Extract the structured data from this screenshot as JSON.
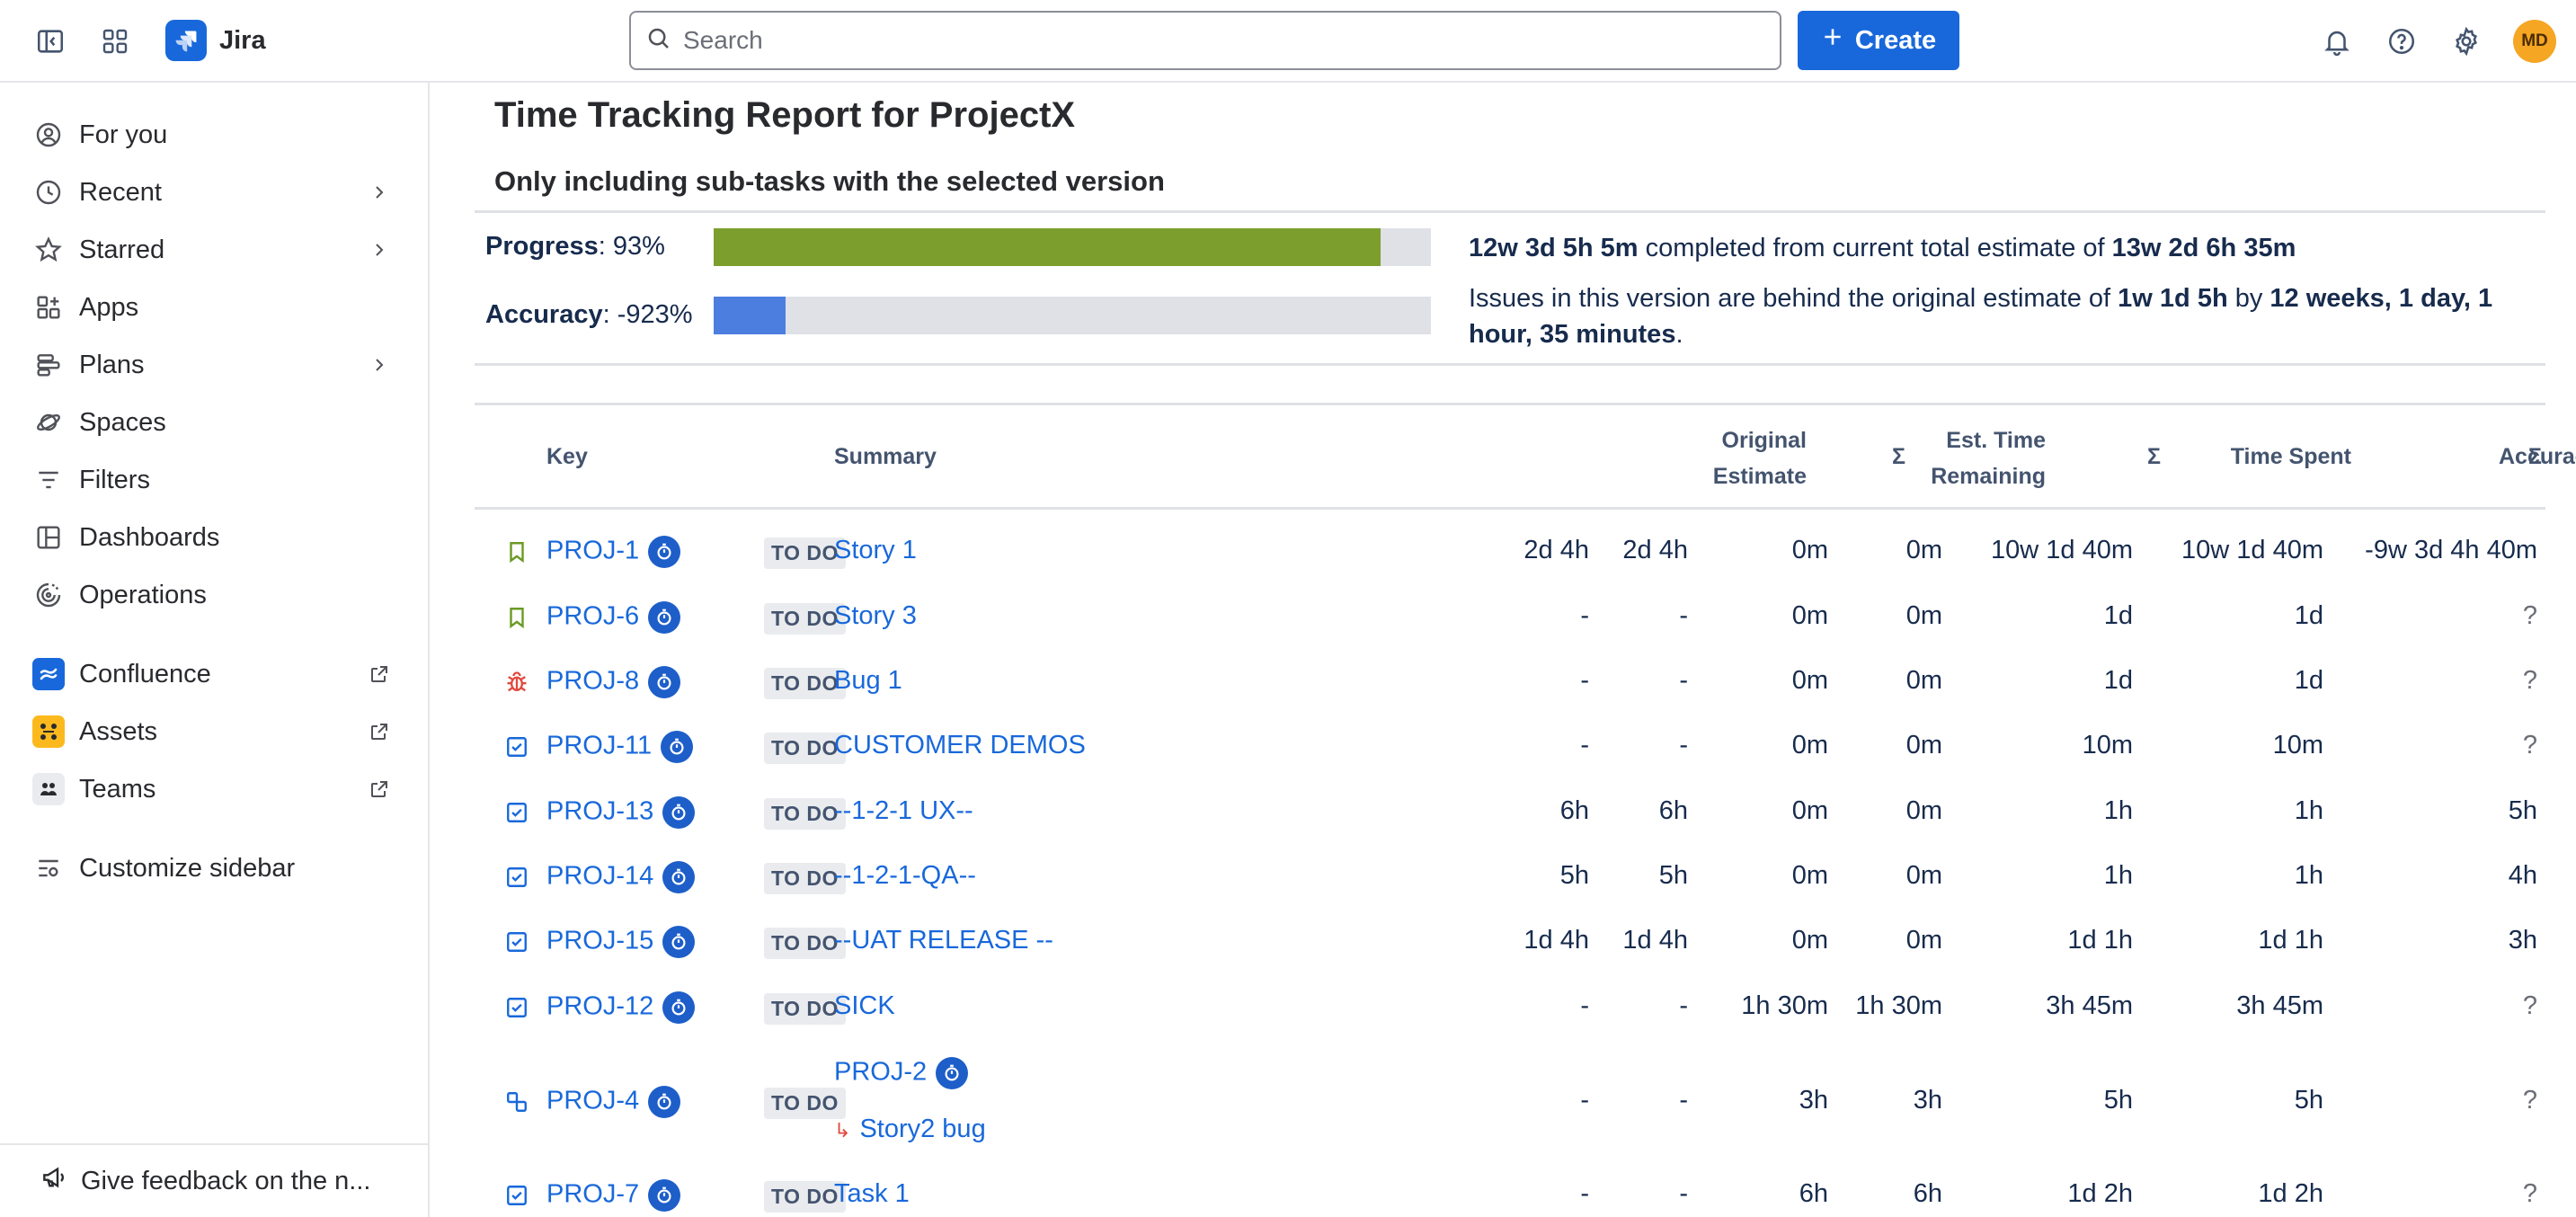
{
  "header": {
    "app_name": "Jira",
    "search_placeholder": "Search",
    "create_label": "Create",
    "avatar_initials": "MD",
    "accent_color": "#1868db"
  },
  "sidebar": {
    "items": [
      {
        "label": "For you",
        "icon": "person-circle-icon",
        "chevron": false
      },
      {
        "label": "Recent",
        "icon": "clock-icon",
        "chevron": true
      },
      {
        "label": "Starred",
        "icon": "star-icon",
        "chevron": true
      },
      {
        "label": "Apps",
        "icon": "apps-icon",
        "chevron": false
      },
      {
        "label": "Plans",
        "icon": "plans-icon",
        "chevron": true
      },
      {
        "label": "Spaces",
        "icon": "spaces-icon",
        "chevron": false
      },
      {
        "label": "Filters",
        "icon": "filter-icon",
        "chevron": false
      },
      {
        "label": "Dashboards",
        "icon": "dashboard-icon",
        "chevron": false
      },
      {
        "label": "Operations",
        "icon": "operations-icon",
        "chevron": false
      }
    ],
    "apps": [
      {
        "label": "Confluence",
        "icon": "confluence-icon",
        "external": true
      },
      {
        "label": "Assets",
        "icon": "assets-icon",
        "external": true
      },
      {
        "label": "Teams",
        "icon": "teams-icon",
        "external": true
      }
    ],
    "customize_label": "Customize sidebar",
    "feedback_label": "Give feedback on the n..."
  },
  "report": {
    "title": "Time Tracking Report for ProjectX",
    "subtitle": "Only including sub-tasks with the selected version",
    "progress_label": "Progress",
    "progress_value": ": 93%",
    "progress_fraction": 0.93,
    "accuracy_label": "Accuracy",
    "accuracy_value": ": -923%",
    "accuracy_fraction": 0.1,
    "progress_color": "#7c9e2c",
    "accuracy_color": "#4c7ee0",
    "completed_amount": "12w 3d 5h 5m",
    "completed_text": " completed from current total estimate of ",
    "total_estimate": "13w 2d 6h 35m",
    "behind_text_1": "Issues in this version are behind the original estimate of ",
    "original_estimate": "1w 1d 5h",
    "behind_text_2": " by ",
    "behind_amount": "12 weeks, 1 day, 1 hour, 35 minutes",
    "behind_text_3": "."
  },
  "table": {
    "headers": {
      "key": "Key",
      "summary": "Summary",
      "original_estimate_1": "Original",
      "original_estimate_2": "Estimate",
      "sigma": "Σ",
      "remaining_1": "Est. Time",
      "remaining_2": "Remaining",
      "time_spent": "Time Spent",
      "accuracy": "Accuracy"
    },
    "rows": [
      {
        "type": "story",
        "key": "PROJ-1",
        "status": "TO DO",
        "summary": "Story 1",
        "orig": "2d 4h",
        "orig_sum": "2d 4h",
        "rem": "0m",
        "rem_sum": "0m",
        "spent": "10w 1d 40m",
        "spent_sum": "10w 1d 40m",
        "acc": "-9w 3d 4h 40m",
        "acc_sum": "-9w 3d 4h 40m"
      },
      {
        "type": "story",
        "key": "PROJ-6",
        "status": "TO DO",
        "summary": "Story 3",
        "orig": "-",
        "orig_sum": "-",
        "rem": "0m",
        "rem_sum": "0m",
        "spent": "1d",
        "spent_sum": "1d",
        "acc": "?",
        "acc_sum": "?"
      },
      {
        "type": "bug",
        "key": "PROJ-8",
        "status": "TO DO",
        "summary": "Bug 1",
        "orig": "-",
        "orig_sum": "-",
        "rem": "0m",
        "rem_sum": "0m",
        "spent": "1d",
        "spent_sum": "1d",
        "acc": "?",
        "acc_sum": "?"
      },
      {
        "type": "task",
        "key": "PROJ-11",
        "status": "TO DO",
        "summary": "CUSTOMER DEMOS",
        "orig": "-",
        "orig_sum": "-",
        "rem": "0m",
        "rem_sum": "0m",
        "spent": "10m",
        "spent_sum": "10m",
        "acc": "?",
        "acc_sum": "?"
      },
      {
        "type": "task",
        "key": "PROJ-13",
        "status": "TO DO",
        "summary": "--1-2-1 UX--",
        "orig": "6h",
        "orig_sum": "6h",
        "rem": "0m",
        "rem_sum": "0m",
        "spent": "1h",
        "spent_sum": "1h",
        "acc": "5h",
        "acc_sum": "5h"
      },
      {
        "type": "task",
        "key": "PROJ-14",
        "status": "TO DO",
        "summary": "--1-2-1-QA--",
        "orig": "5h",
        "orig_sum": "5h",
        "rem": "0m",
        "rem_sum": "0m",
        "spent": "1h",
        "spent_sum": "1h",
        "acc": "4h",
        "acc_sum": "4h"
      },
      {
        "type": "task",
        "key": "PROJ-15",
        "status": "TO DO",
        "summary": "--UAT RELEASE --",
        "orig": "1d 4h",
        "orig_sum": "1d 4h",
        "rem": "0m",
        "rem_sum": "0m",
        "spent": "1d 1h",
        "spent_sum": "1d 1h",
        "acc": "3h",
        "acc_sum": "3h"
      },
      {
        "type": "task",
        "key": "PROJ-12",
        "status": "TO DO",
        "summary": "SICK",
        "orig": "-",
        "orig_sum": "-",
        "rem": "1h 30m",
        "rem_sum": "1h 30m",
        "spent": "3h 45m",
        "spent_sum": "3h 45m",
        "acc": "?",
        "acc_sum": "?"
      },
      {
        "type": "subtask",
        "key": "PROJ-4",
        "status": "TO DO",
        "summary": "Story2 bug",
        "parent_key": "PROJ-2",
        "orig": "-",
        "orig_sum": "-",
        "rem": "3h",
        "rem_sum": "3h",
        "spent": "5h",
        "spent_sum": "5h",
        "acc": "?",
        "acc_sum": "?"
      },
      {
        "type": "task",
        "key": "PROJ-7",
        "status": "TO DO",
        "summary": "Task 1",
        "orig": "-",
        "orig_sum": "-",
        "rem": "6h",
        "rem_sum": "6h",
        "spent": "1d 2h",
        "spent_sum": "1d 2h",
        "acc": "?",
        "acc_sum": "?"
      }
    ]
  }
}
